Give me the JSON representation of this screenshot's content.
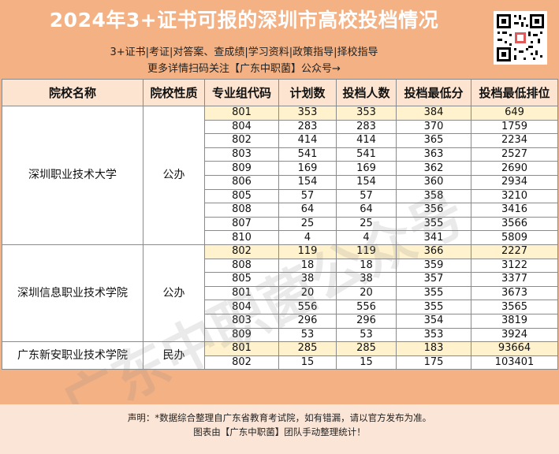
{
  "header": {
    "title": "2024年3+证书可报的深圳市高校投档情况",
    "line1": "3+证书|考证|对答案、查成绩|学习资料|政策指导|择校指导",
    "line2": "更多详情扫码关注【广东中职菌】公众号→"
  },
  "table": {
    "columns": [
      "院校名称",
      "院校性质",
      "专业组代码",
      "计划数",
      "投档人数",
      "投档最低分",
      "投档最低排位"
    ],
    "schools": [
      {
        "name": "深圳职业技术大学",
        "nature": "公办",
        "rows": [
          [
            "801",
            "353",
            "353",
            "384",
            "649"
          ],
          [
            "804",
            "283",
            "283",
            "370",
            "1759"
          ],
          [
            "802",
            "414",
            "414",
            "365",
            "2234"
          ],
          [
            "803",
            "541",
            "541",
            "363",
            "2527"
          ],
          [
            "809",
            "169",
            "169",
            "362",
            "2690"
          ],
          [
            "806",
            "154",
            "154",
            "360",
            "2934"
          ],
          [
            "805",
            "57",
            "57",
            "358",
            "3210"
          ],
          [
            "808",
            "64",
            "64",
            "356",
            "3416"
          ],
          [
            "807",
            "25",
            "25",
            "355",
            "3566"
          ],
          [
            "810",
            "4",
            "4",
            "341",
            "5809"
          ]
        ]
      },
      {
        "name": "深圳信息职业技术学院",
        "nature": "公办",
        "rows": [
          [
            "802",
            "119",
            "119",
            "366",
            "2227"
          ],
          [
            "808",
            "18",
            "18",
            "359",
            "3122"
          ],
          [
            "805",
            "38",
            "38",
            "357",
            "3377"
          ],
          [
            "801",
            "20",
            "20",
            "355",
            "3673"
          ],
          [
            "804",
            "556",
            "556",
            "355",
            "3565"
          ],
          [
            "803",
            "296",
            "296",
            "354",
            "3819"
          ],
          [
            "809",
            "53",
            "53",
            "353",
            "3924"
          ]
        ]
      },
      {
        "name": "广东新安职业技术学院",
        "nature": "民办",
        "rows": [
          [
            "801",
            "285",
            "285",
            "183",
            "93664"
          ],
          [
            "802",
            "15",
            "15",
            "175",
            "103401"
          ]
        ]
      }
    ]
  },
  "footer": {
    "line1": "声明：*数据综合整理自广东省教育考试院，如有错漏，请以官方发布为准。",
    "line2": "图表由【广东中职菌】团队手动整理统计！"
  },
  "watermark": "广东中职菌公众号",
  "colors": {
    "background": "#f4b183",
    "header_row": "#fce4d0",
    "highlight_row": "#fff2cc",
    "footer": "#fbe5d6"
  }
}
